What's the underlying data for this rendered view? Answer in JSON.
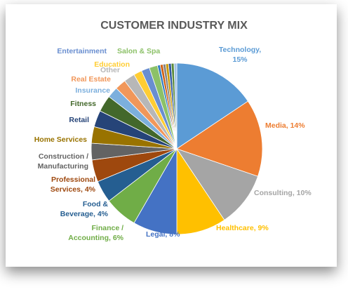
{
  "chart_data": {
    "type": "pie",
    "title": "CUSTOMER INDUSTRY MIX",
    "labels": [
      "Technology,\n15%",
      "Media, 14%",
      "Consulting, 10%",
      "Healthcare, 9%",
      "Legal, 8%",
      "Finance /\nAccounting, 6%",
      "Food &\nBeverage, 4%",
      "Professional\nServices, 4%",
      "Construction /\nManufacturing",
      "Home Services",
      "Retail",
      "Fitness",
      "Insurance",
      "Real Estate",
      "Other",
      "Education",
      "Entertainment",
      "Salon & Spa",
      null,
      null,
      null,
      null,
      null,
      null,
      null
    ],
    "values": [
      15,
      14,
      10,
      9,
      8,
      6,
      4,
      4,
      3,
      3,
      3,
      3,
      2,
      2,
      2,
      1.5,
      1.5,
      1.5,
      0.5,
      0.5,
      0.5,
      0.5,
      0.5,
      0.5,
      0.5
    ],
    "colors": [
      "#5b9bd5",
      "#ed7d31",
      "#a5a5a5",
      "#ffc000",
      "#4472c4",
      "#70ad47",
      "#255e91",
      "#9e480e",
      "#636363",
      "#997300",
      "#264478",
      "#43682b",
      "#7cafdd",
      "#f1975a",
      "#b7b7b7",
      "#ffcd33",
      "#698ed0",
      "#8cc168",
      "#327dc2",
      "#d26012",
      "#848484",
      "#cc9a00",
      "#335aa1",
      "#5a8a39",
      "#a1c2e4"
    ]
  }
}
